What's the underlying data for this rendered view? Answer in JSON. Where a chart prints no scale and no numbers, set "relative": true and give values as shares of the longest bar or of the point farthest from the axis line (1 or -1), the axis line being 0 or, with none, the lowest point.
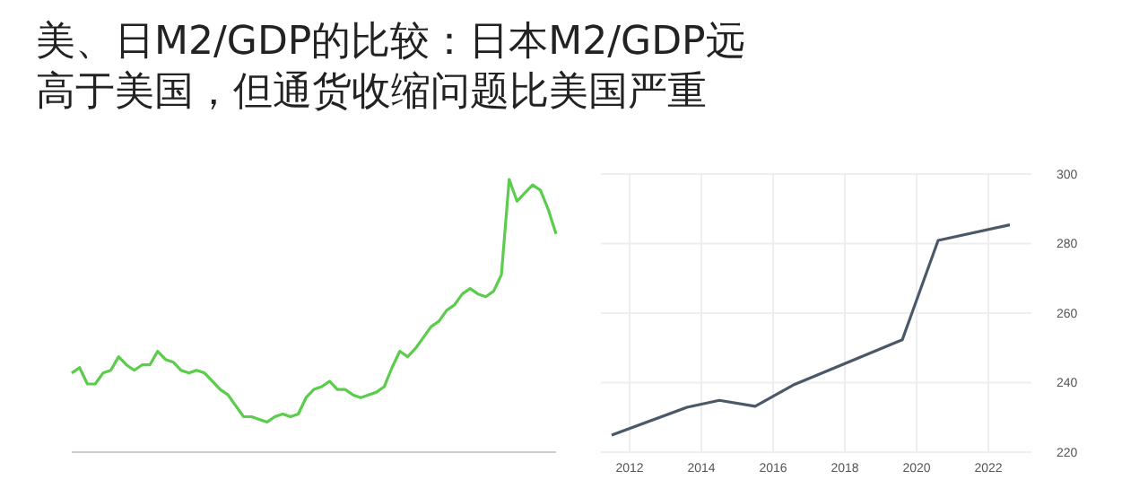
{
  "chart_data": [
    {
      "type": "line",
      "title": "美、日M2/GDP的比较：日本M2/GDP远高于美国，但通货收缩问题比美国严重",
      "relative": true,
      "categories": [
        null,
        null,
        null,
        null,
        null,
        null,
        null,
        null,
        null,
        null,
        null,
        null,
        null,
        null,
        null,
        null,
        null,
        null,
        null,
        null,
        null,
        null,
        null,
        null,
        null,
        null,
        null,
        null,
        null,
        null,
        null,
        null,
        null,
        null,
        null,
        null,
        null,
        null,
        null,
        null,
        null,
        null,
        null,
        null,
        null,
        null,
        null,
        null,
        null,
        null,
        null,
        null,
        null,
        null,
        null,
        null,
        null,
        null,
        null,
        null,
        null,
        null,
        null
      ],
      "series": [
        {
          "color": "#5ccc4c",
          "values": [
            0.29,
            0.31,
            0.25,
            0.25,
            0.29,
            0.3,
            0.35,
            0.32,
            0.3,
            0.32,
            0.32,
            0.37,
            0.34,
            0.33,
            0.3,
            0.29,
            0.3,
            0.29,
            0.26,
            0.23,
            0.21,
            0.17,
            0.13,
            0.13,
            0.12,
            0.11,
            0.13,
            0.14,
            0.13,
            0.14,
            0.2,
            0.23,
            0.24,
            0.26,
            0.23,
            0.23,
            0.21,
            0.2,
            0.21,
            0.22,
            0.24,
            0.31,
            0.37,
            0.35,
            0.38,
            0.42,
            0.46,
            0.48,
            0.52,
            0.54,
            0.58,
            0.6,
            0.58,
            0.57,
            0.59,
            0.65,
            1,
            0.92,
            0.95,
            0.98,
            0.96,
            0.89,
            0.8
          ]
        }
      ]
    },
    {
      "type": "line",
      "grid": true,
      "x": [
        2011.5,
        2013.6,
        2014.5,
        2015.5,
        2016.6,
        2019.6,
        2020.6,
        2022.6
      ],
      "xlim": [
        2011.2,
        2023.2
      ],
      "xticks": [
        2012,
        2014,
        2016,
        2018,
        2020,
        2022
      ],
      "ylim": [
        220,
        300
      ],
      "yticks": [
        220,
        240,
        260,
        280,
        300
      ],
      "series": [
        {
          "color": "#4a5868",
          "values": [
            224.9,
            232.9,
            234.9,
            233.2,
            239.5,
            252.3,
            280.9,
            285.4
          ]
        }
      ]
    }
  ]
}
